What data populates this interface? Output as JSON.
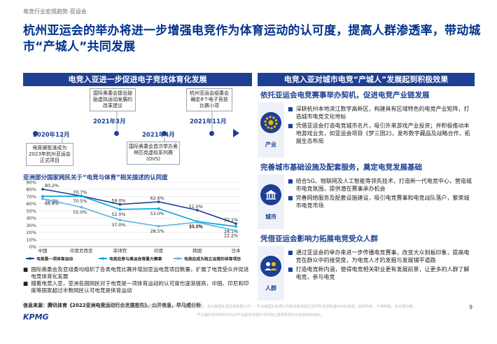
{
  "header": {
    "breadcrumb": "电竞行业宏观趋势-亚运会",
    "title": "杭州亚运会的举办将进一步增强电竞作为体育运动的认可度，提高人群渗透率，带动城市“产城人”共同发展"
  },
  "left_panel": {
    "heading": "电竞入亚进一步促进电子竞技体育化发展",
    "timeline": [
      {
        "date": "2020年12月",
        "text": "电竞被批准成为2023年杭州亚运会正式项目"
      },
      {
        "date": "2021年3月",
        "text": "国际奥委会提出鼓励虚拟运动发展的改革建议"
      },
      {
        "date": "2021年4月",
        "text": "国际奥委会首次举办奥林匹克虚拟系列赛(OVS)"
      },
      {
        "date": "2021年11月",
        "text": "杭州亚运会组委会确定8个电子竞技比赛小项"
      }
    ],
    "chart_title": "亚洲部分国家网民关于“电竞与体育”相关描述的认同度",
    "notes": [
      "国际奥委会及亚组委均组织了各类电竞比赛并增加亚运电竞项目数量，扩展了电竞受众并促进电竞体育化发展",
      "随着电竞入亚，亚洲各国网民对于电竞是一项体育运动的认可度也逐渐提高，中国、印尼和印度等国家超过半数网民认可电竞是体育运动"
    ],
    "source": "信息来源：腾讯体育《2022亚洲电竞运动行业发展报告》，公开信息，毕马威分析"
  },
  "chart_data": {
    "type": "line",
    "title": "亚洲部分国家网民关于“电竞与体育”相关描述的认同度",
    "categories": [
      "中国",
      "印度尼西亚",
      "菲律宾",
      "印度",
      "韩国",
      "日本"
    ],
    "y_ticks": [
      "0%",
      "10%",
      "20%",
      "30%",
      "40%",
      "50%",
      "60%",
      "70%",
      "80%",
      "90%"
    ],
    "ylim": [
      0,
      90
    ],
    "series": [
      {
        "name": "电竞是一项体育运动",
        "color": "#1d3f94",
        "values": [
          80.2,
          70.7,
          59.0,
          62.6,
          51.0,
          32.1
        ],
        "labels": [
          "80.2%",
          "70.7%",
          "59.0%",
          "62.6%",
          "51.0%",
          "32.1%"
        ]
      },
      {
        "name": "电竞应参与奥运会等重大赛事",
        "color": "#00a3e0",
        "values": [
          70.3,
          70.5,
          52.0,
          53.0,
          35.0,
          28.1
        ],
        "labels": [
          "70.3%",
          "70.5%",
          "52.0%",
          "53.0%",
          "35.0%",
          "28.1%"
        ]
      },
      {
        "name": "电竞应成为独立运营的体育项目",
        "color": "#5cb3e6",
        "values": [
          66.8,
          55.0,
          37.0,
          28.5,
          34.0,
          22.2
        ],
        "labels": [
          "66.8%",
          "55.0%",
          "37.0%",
          "28.5%",
          "34.0%",
          "22.2%"
        ]
      }
    ],
    "legend_position": "bottom"
  },
  "right_panel": {
    "heading": "电竞入亚对城市电竞“产城人”发展起到积极效果",
    "sections": [
      {
        "title": "依托亚运会电竞赛事举办契机，促进电竞产业链发展",
        "icon": "gear-icon",
        "label": "产业",
        "bullets": [
          "深耕杭州本地滨江数字高新区，构建具有区域特色的电竞产业矩阵，打造城市电竞文化地标",
          "凭借亚运会打造电竞城市名片，吸引外来游戏产业投资；并积极推动本地游戏业务，如亚运会项目《梦三国2》，发布数字藏品及战略合作，拓展生态布局"
        ]
      },
      {
        "title": "完善城市基础设施及配套服务，奠定电竞发展基础",
        "icon": "city-building-icon",
        "label": "城市",
        "bullets": [
          "结合5G、物联网及人工智能等领先技术，打造新一代电竞中心，营造城市电竞氛围，提供潜在赛事承办机会",
          "完善网络服务及配套设施建设，吸引电竞赛事和电竞战队落户，繁荣城市电竞市场"
        ]
      },
      {
        "title": "凭借亚运会影响力拓展电竞受众人群",
        "icon": "people-icon",
        "label": "人群",
        "bullets": [
          "通过亚运会的举办来进一步传播电竞赛事，改变大众刻板印象，提高电竞在群众中的接受度，为电竞人才的发掘与发展铺平道路",
          "打造电竞新内涵，使得电竞相关职业更有发展前景，让更多的人群了解电竞，参与电竞"
        ]
      }
    ]
  },
  "footer": {
    "logo": "KPMG",
    "line1": "© 2023毕马威企业咨询(中国)有限公司 — 中国有限责任公司，是与英国私营担保有限公司 — 毕马威国际有限公司相关联的独立成员所全球性组织中的成员。版权所有，不得转载。在中国印刷。",
    "line2": "毕马威的名称和标识均为毕马威全球组织中的独立成员所经许可后使用的商标。",
    "page_number": "9"
  }
}
